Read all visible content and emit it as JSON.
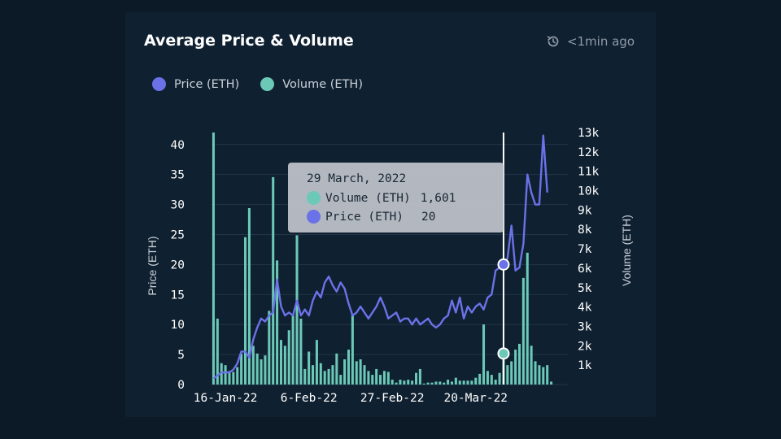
{
  "card": {
    "title": "Average Price & Volume",
    "updated": "<1min ago",
    "refresh_icon": "refresh-clock-icon"
  },
  "colors": {
    "price": "#6b72e8",
    "volume": "#6cc9b8",
    "background": "#0f2030",
    "cursor": "#ffffff"
  },
  "tooltip": {
    "date": "29 March, 2022",
    "volume_label": "Volume (ETH)",
    "volume_value": "1,601",
    "price_label": "Price (ETH)",
    "price_value": "20"
  },
  "chart_data": {
    "type": "bar",
    "title": "Average Price & Volume",
    "legend": [
      "Price (ETH)",
      "Volume (ETH)"
    ],
    "legend_position": "top-left",
    "x_tick_labels": [
      "16-Jan-22",
      "6-Feb-22",
      "27-Feb-22",
      "20-Mar-22"
    ],
    "x_tick_index": [
      3,
      24,
      45,
      66
    ],
    "y_left": {
      "label": "Price (ETH)",
      "ticks": [
        0,
        5,
        10,
        15,
        20,
        25,
        30,
        35,
        40
      ],
      "range": [
        0,
        42
      ]
    },
    "y_right": {
      "label": "Volume (ETH)",
      "ticks": [
        "1k",
        "2k",
        "3k",
        "4k",
        "5k",
        "6k",
        "7k",
        "8k",
        "9k",
        "10k",
        "11k",
        "12k",
        "13k"
      ],
      "tick_values": [
        1000,
        2000,
        3000,
        4000,
        5000,
        6000,
        7000,
        8000,
        9000,
        10000,
        11000,
        12000,
        13000
      ],
      "range": [
        0,
        13000
      ]
    },
    "hover_index": 73,
    "series": [
      {
        "name": "Volume (ETH)",
        "kind": "bar",
        "axis": "right",
        "values": [
          13000,
          3400,
          1100,
          1000,
          700,
          650,
          900,
          1600,
          7600,
          9100,
          2000,
          1600,
          1300,
          1500,
          3800,
          10700,
          6400,
          2300,
          2000,
          2800,
          3600,
          7700,
          3400,
          800,
          1700,
          1000,
          2300,
          1100,
          700,
          800,
          1000,
          1600,
          500,
          1300,
          1800,
          3600,
          1200,
          1300,
          1000,
          700,
          500,
          800,
          500,
          700,
          650,
          250,
          100,
          250,
          200,
          250,
          200,
          600,
          800,
          50,
          100,
          100,
          150,
          150,
          100,
          250,
          150,
          350,
          200,
          200,
          200,
          200,
          350,
          550,
          3100,
          700,
          500,
          250,
          600,
          1601,
          1000,
          1200,
          1800,
          2100,
          5500,
          6800,
          2000,
          1200,
          1000,
          900,
          1000,
          150
        ]
      },
      {
        "name": "Price (ETH)",
        "kind": "line",
        "axis": "left",
        "values": [
          1,
          1.5,
          2,
          2,
          2,
          2.5,
          3.5,
          5.5,
          5.5,
          4.5,
          7.5,
          9.5,
          11,
          10.5,
          11.5,
          12,
          17.5,
          13,
          11.5,
          12,
          11.5,
          14,
          11.5,
          12.5,
          11.5,
          14,
          15.5,
          14.5,
          17,
          18,
          16.5,
          15.5,
          17,
          16,
          13.5,
          11.5,
          12,
          13,
          12,
          11,
          12,
          13,
          14.5,
          13,
          11,
          11.5,
          12,
          10.5,
          11,
          11,
          10,
          11,
          10,
          10.5,
          11,
          10,
          9.5,
          10,
          11,
          11.5,
          14,
          12,
          14.5,
          11,
          13,
          12,
          13,
          13.5,
          12.5,
          14.5,
          15,
          19,
          19.5,
          20,
          21,
          26.5,
          19,
          19.5,
          23.5,
          35,
          32,
          30,
          30,
          41.5,
          32
        ]
      }
    ]
  }
}
